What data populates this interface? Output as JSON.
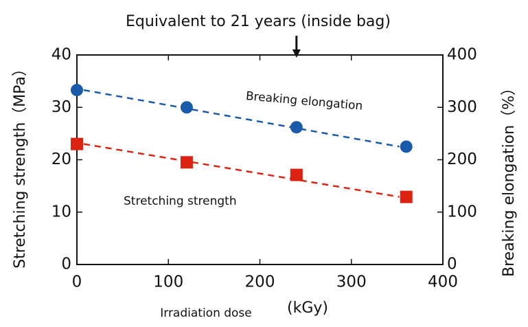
{
  "chart_data": {
    "type": "scatter",
    "annotation": {
      "text": "Equivalent to 21 years (inside bag)",
      "x": 240
    },
    "x_label": "Irradiation dose",
    "x_unit": "(kGy)",
    "y_label": "Stretching strength（MPa）",
    "y2_label": "Breaking elongation（%）",
    "x": [
      0,
      120,
      240,
      360
    ],
    "xlim": [
      0,
      400
    ],
    "xticks": [
      0,
      100,
      200,
      300,
      400
    ],
    "ylim": [
      0,
      40
    ],
    "yticks": [
      0,
      10,
      20,
      30,
      40
    ],
    "y2lim": [
      0,
      400
    ],
    "y2ticks": [
      0,
      100,
      200,
      300,
      400
    ],
    "series": [
      {
        "name": "Stretching strength",
        "color": "#dd2211",
        "marker": "square",
        "values": [
          23.0,
          19.5,
          17.1,
          12.9
        ]
      },
      {
        "name": "Breaking elongation",
        "color": "#1a5aaa",
        "marker": "circle",
        "axis": "y2",
        "values": [
          333,
          300,
          262,
          225
        ]
      }
    ]
  }
}
